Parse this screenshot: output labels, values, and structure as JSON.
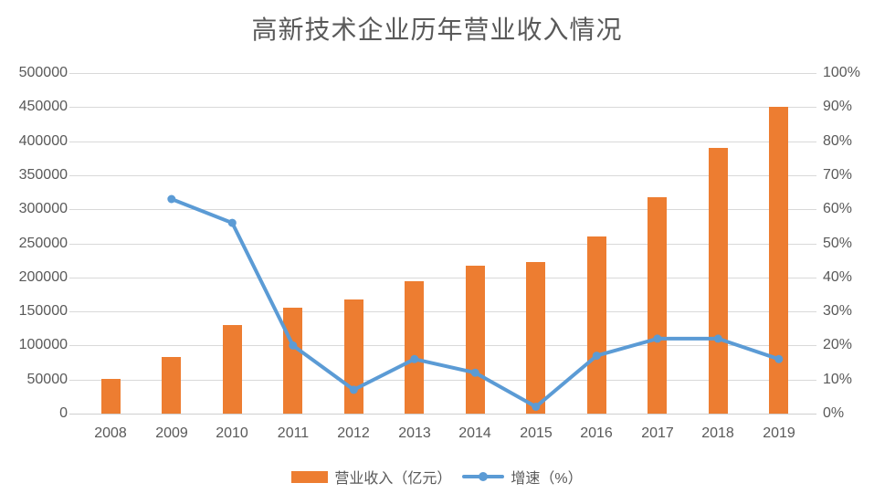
{
  "chart_data": {
    "type": "bar",
    "combo": "bar+line, dual axis",
    "title": "高新技术企业历年营业收入情况",
    "categories": [
      "2008",
      "2009",
      "2010",
      "2011",
      "2012",
      "2013",
      "2014",
      "2015",
      "2016",
      "2017",
      "2018",
      "2019"
    ],
    "series": [
      {
        "name": "营业收入（亿元）",
        "type": "bar",
        "axis": "left",
        "color": "#ED7D31",
        "values": [
          51000,
          83000,
          130000,
          156000,
          167000,
          194000,
          217000,
          222000,
          260000,
          318000,
          390000,
          450000
        ]
      },
      {
        "name": "增速（%）",
        "type": "line",
        "axis": "right",
        "color": "#5B9BD5",
        "values": [
          null,
          63,
          56,
          20,
          7,
          16,
          12,
          2,
          17,
          22,
          22,
          16
        ]
      }
    ],
    "left_axis": {
      "min": 0,
      "max": 500000,
      "step": 50000,
      "ticks": [
        "0",
        "50000",
        "100000",
        "150000",
        "200000",
        "250000",
        "300000",
        "350000",
        "400000",
        "450000",
        "500000"
      ]
    },
    "right_axis": {
      "min": 0,
      "max": 100,
      "step": 10,
      "ticks": [
        "0%",
        "10%",
        "20%",
        "30%",
        "40%",
        "50%",
        "60%",
        "70%",
        "80%",
        "90%",
        "100%"
      ]
    },
    "grid": true,
    "legend_position": "bottom",
    "colors": {
      "grid": "#D9D9D9",
      "axis_label": "#595959",
      "title": "#595959",
      "background": "#FFFFFF"
    }
  }
}
